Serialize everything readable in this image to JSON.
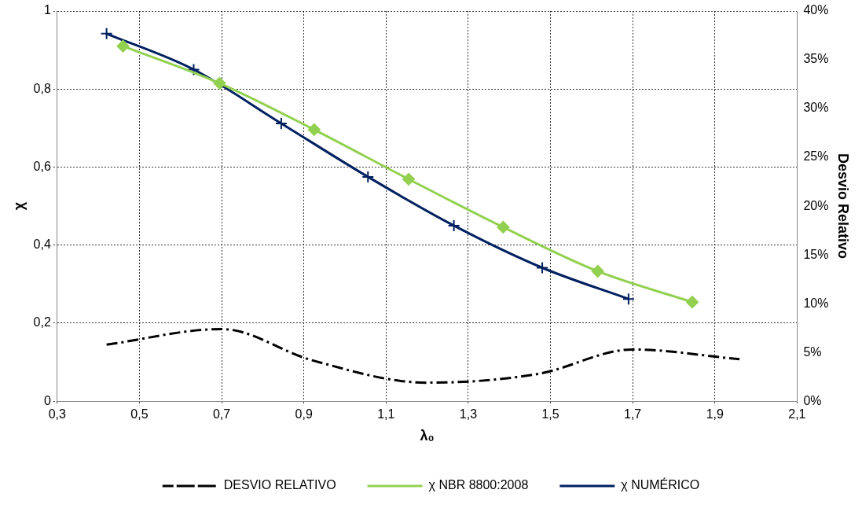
{
  "chart_data": {
    "type": "line",
    "xlabel": "λ₀",
    "ylabel": "χ",
    "y2label": "Desvio Relativo",
    "xlim": [
      0.3,
      2.1
    ],
    "xticks": [
      {
        "value": 0.3,
        "label": "0,3"
      },
      {
        "value": 0.5,
        "label": "0,5"
      },
      {
        "value": 0.7,
        "label": "0,7"
      },
      {
        "value": 0.9,
        "label": "0,9"
      },
      {
        "value": 1.1,
        "label": "1,1"
      },
      {
        "value": 1.3,
        "label": "1,3"
      },
      {
        "value": 1.5,
        "label": "1,5"
      },
      {
        "value": 1.7,
        "label": "1,7"
      },
      {
        "value": 1.9,
        "label": "1,9"
      },
      {
        "value": 2.1,
        "label": "2,1"
      }
    ],
    "ylim": [
      0,
      1
    ],
    "yticks": [
      0,
      {
        "value": 0.2,
        "label": "0,2"
      },
      {
        "value": 0.4,
        "label": "0,4"
      },
      {
        "value": 0.6,
        "label": "0,6"
      },
      {
        "value": 0.8,
        "label": "0,8"
      },
      1
    ],
    "y2lim": [
      0,
      40
    ],
    "y2ticks": [
      {
        "value": 0,
        "label": "0%"
      },
      {
        "value": 5,
        "label": "5%"
      },
      {
        "value": 10,
        "label": "10%"
      },
      {
        "value": 15,
        "label": "15%"
      },
      {
        "value": 20,
        "label": "20%"
      },
      {
        "value": 25,
        "label": "25%"
      },
      {
        "value": 30,
        "label": "30%"
      },
      {
        "value": 35,
        "label": "35%"
      },
      {
        "value": 40,
        "label": "40%"
      }
    ],
    "grid": true,
    "legend": "bottom",
    "series": [
      {
        "name": "DESVIO RELATIVO",
        "color": "#000000",
        "axis": "y2",
        "line_style": "dashed",
        "marker": "none",
        "x": [
          0.42,
          0.7,
          0.92,
          1.2,
          1.47,
          1.7,
          1.96
        ],
        "values": [
          5.8,
          7.4,
          4.2,
          1.9,
          2.8,
          5.3,
          4.3
        ]
      },
      {
        "name": "χ NBR 8800:2008",
        "color": "#92d050",
        "marker": "diamond",
        "line_style": "solid",
        "x": [
          0.46,
          0.695,
          0.925,
          1.155,
          1.385,
          1.615,
          1.845
        ],
        "values": [
          0.91,
          0.815,
          0.696,
          0.569,
          0.446,
          0.333,
          0.254
        ]
      },
      {
        "name": "χ NUMÉRICO",
        "color": "#002060",
        "marker": "cross",
        "line_style": "solid",
        "x": [
          0.42,
          0.632,
          0.845,
          1.056,
          1.265,
          1.48,
          1.69
        ],
        "values": [
          0.942,
          0.85,
          0.712,
          0.575,
          0.45,
          0.342,
          0.262
        ]
      }
    ]
  }
}
